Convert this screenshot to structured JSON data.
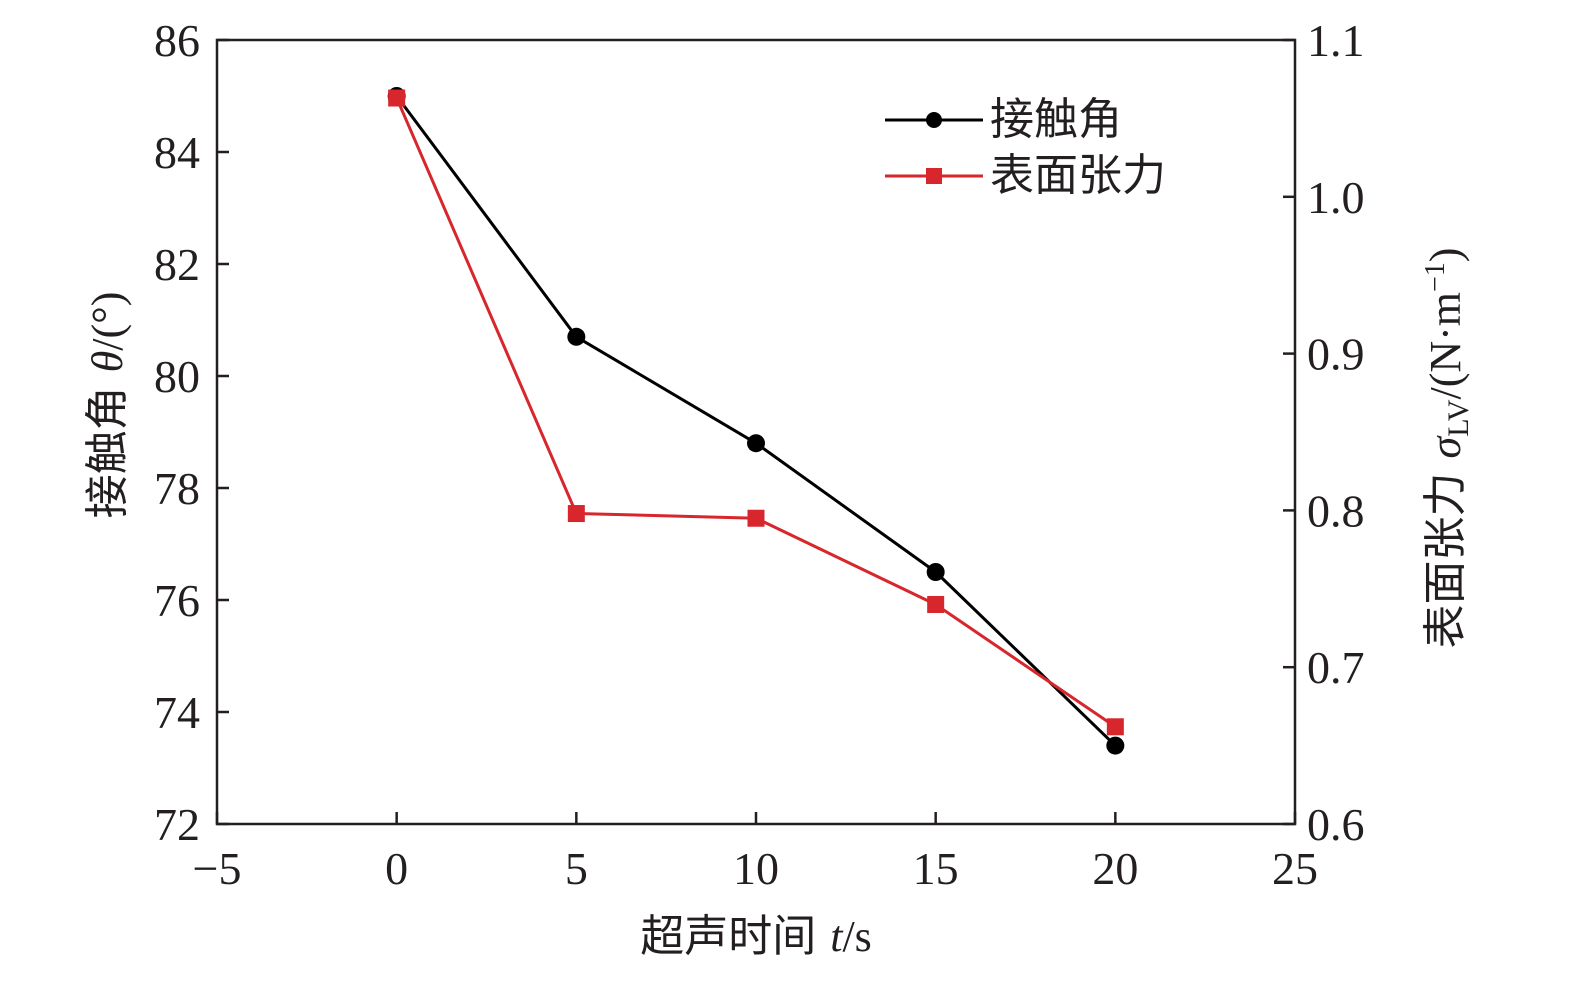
{
  "chart_data": {
    "type": "line",
    "x": [
      0,
      5,
      10,
      15,
      20
    ],
    "xlim": [
      -5,
      25
    ],
    "x_ticks": [
      "−5",
      "0",
      "5",
      "10",
      "15",
      "20",
      "25"
    ],
    "xlabel": {
      "text": "超声时间 ",
      "var": "t",
      "unit": "/s"
    },
    "y_left": {
      "lim": [
        72,
        86
      ],
      "ticks": [
        "72",
        "74",
        "76",
        "78",
        "80",
        "82",
        "84",
        "86"
      ],
      "label": {
        "text": "接触角 ",
        "var": "θ",
        "unit": "/(°)"
      }
    },
    "y_right": {
      "lim": [
        0.6,
        1.1
      ],
      "ticks": [
        "0.6",
        "0.7",
        "0.8",
        "0.9",
        "1.0",
        "1.1"
      ],
      "label": {
        "text": "表面张力 ",
        "var": "σ",
        "sub": "LV",
        "unit_a": "/(N·m",
        "sup": "−1",
        "unit_b": ")"
      }
    },
    "series": [
      {
        "name": "接触角",
        "axis": "left",
        "marker": "circle",
        "color": "#000000",
        "values": [
          85.0,
          80.7,
          78.8,
          76.5,
          73.4
        ]
      },
      {
        "name": "表面张力",
        "axis": "right",
        "marker": "square",
        "color": "#d7262c",
        "values": [
          1.063,
          0.798,
          0.795,
          0.74,
          0.662
        ]
      }
    ],
    "legend_position": "top-right",
    "grid": false
  }
}
